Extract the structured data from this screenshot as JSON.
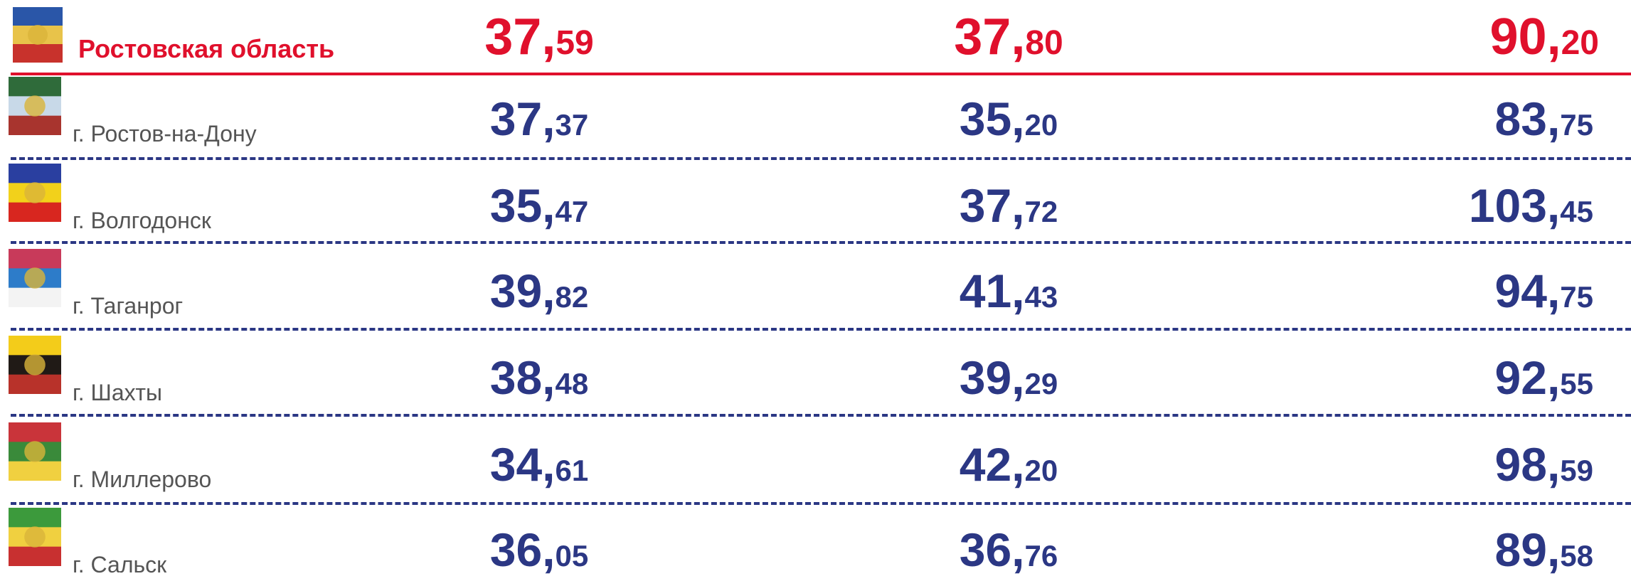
{
  "region": {
    "name": "Ростовская область",
    "values": [
      "37,59",
      "37,80",
      "90,20"
    ]
  },
  "rows": [
    {
      "name": "г. Ростов-на-Дону",
      "values": [
        "37,37",
        "35,20",
        "83,75"
      ]
    },
    {
      "name": "г. Волгодонск",
      "values": [
        "35,47",
        "37,72",
        "103,45"
      ]
    },
    {
      "name": "г. Таганрог",
      "values": [
        "39,82",
        "41,43",
        "94,75"
      ]
    },
    {
      "name": "г. Шахты",
      "values": [
        "38,48",
        "39,29",
        "92,55"
      ]
    },
    {
      "name": "г. Миллерово",
      "values": [
        "34,61",
        "42,20",
        "98,59"
      ]
    },
    {
      "name": "г. Сальск",
      "values": [
        "36,05",
        "36,76",
        "89,58"
      ]
    }
  ]
}
